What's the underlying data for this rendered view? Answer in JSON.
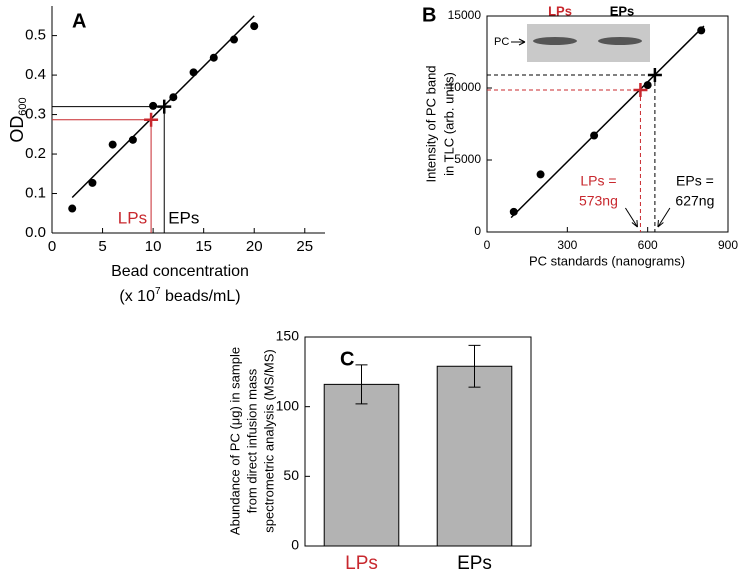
{
  "chart_data": [
    {
      "type": "scatter",
      "panel_label": "A",
      "x_label": {
        "line1": "Bead concentration",
        "line2_start": "(x 10",
        "line2_superscript": "7",
        "line2_end": " beads/mL)"
      },
      "y_label": {
        "text": "OD",
        "subscript": "600"
      },
      "x": [
        2,
        4,
        6,
        8,
        10,
        12,
        14,
        16,
        18,
        20
      ],
      "y": [
        0.062,
        0.127,
        0.224,
        0.236,
        0.322,
        0.344,
        0.407,
        0.444,
        0.49,
        0.524
      ],
      "fit_line": {
        "x": [
          2,
          20
        ],
        "y": [
          0.09,
          0.55
        ]
      },
      "markers": [
        {
          "label": [
            "LPs"
          ],
          "x": 9.8,
          "y": 0.287,
          "color": "#c8282e"
        },
        {
          "label": [
            "EPs"
          ],
          "x": 11.1,
          "y": 0.32,
          "color": "#000000"
        }
      ],
      "reference_lines": "solid",
      "xlim": [
        0,
        27
      ],
      "xticks": [
        0,
        5,
        10,
        15,
        20,
        25
      ],
      "ylim": [
        0,
        0.575
      ],
      "yticks": [
        {
          "value": 0,
          "label": "0.0"
        },
        0.1,
        0.2,
        0.3,
        0.4,
        0.5
      ],
      "color": "#000000",
      "frame": false
    },
    {
      "type": "scatter",
      "panel_label": "B",
      "x_label": {
        "line1": "PC standards (nanograms)"
      },
      "y_label": {
        "lines": [
          "Intensity of PC band",
          "in TLC (arb. units)"
        ]
      },
      "x": [
        100,
        200,
        400,
        600,
        800
      ],
      "y": [
        1400,
        4000,
        6700,
        10200,
        14000
      ],
      "fit_line": {
        "x": [
          90,
          810
        ],
        "y": [
          1000,
          14300
        ]
      },
      "markers": [
        {
          "label": [
            "LPs =",
            "573ng"
          ],
          "x": 573,
          "y": 9860,
          "color": "#c8282e"
        },
        {
          "label": [
            "EPs =",
            "627ng"
          ],
          "x": 627,
          "y": 10900,
          "color": "#000000"
        }
      ],
      "reference_lines": "dashed",
      "inset": {
        "lanes": [
          "LPs",
          "EPs"
        ],
        "lane_colors": [
          "#c8282e",
          "#000000"
        ],
        "band_label": "PC"
      },
      "xlim": [
        0,
        900
      ],
      "xticks": [
        0,
        300,
        600,
        900
      ],
      "ylim": [
        0,
        15000
      ],
      "yticks": [
        0,
        5000,
        10000,
        15000
      ],
      "color": "#000000",
      "frame": true
    },
    {
      "type": "bar",
      "panel_label": "C",
      "y_label": {
        "lines": [
          "Abundance of PC (μg) in sample",
          "from direct infusion mass",
          "spectrometric analysis (MS/MS)"
        ]
      },
      "categories": [
        "LPs",
        "EPs"
      ],
      "category_colors": [
        "#c8282e",
        "#000000"
      ],
      "values": [
        116,
        129
      ],
      "errors": [
        14,
        15
      ],
      "color": "#b3b3b3",
      "ylim": [
        0,
        150
      ],
      "yticks": [
        0,
        50,
        100,
        150
      ],
      "frame": true
    }
  ]
}
